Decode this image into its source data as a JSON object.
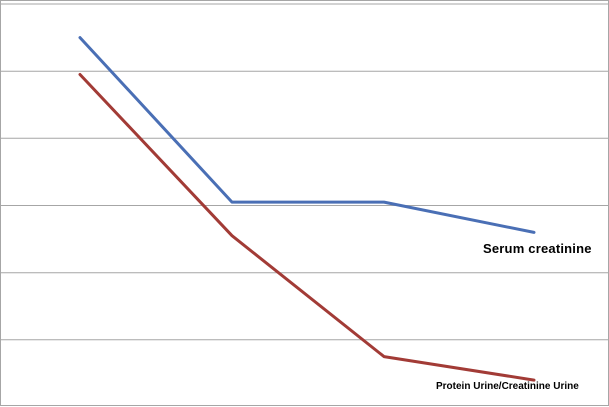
{
  "chart_data": {
    "type": "line",
    "title": "",
    "xlabel": "",
    "ylabel": "",
    "x": [
      1,
      2,
      3,
      4
    ],
    "ylim": [
      0,
      6
    ],
    "grid": true,
    "series": [
      {
        "name": "Serum creatinine",
        "color": "#4a6fb5",
        "values": [
          5.5,
          3.05,
          3.05,
          2.6
        ]
      },
      {
        "name": "Protein Urine/Creatinine Urine",
        "color": "#a23b36",
        "values": [
          4.95,
          2.55,
          0.75,
          0.4
        ]
      }
    ]
  }
}
